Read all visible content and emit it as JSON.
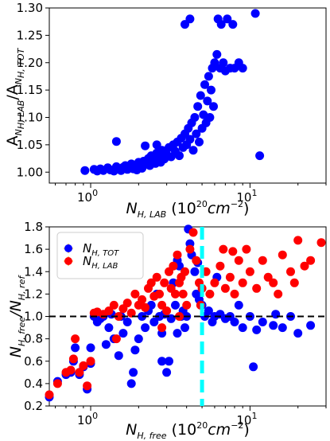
{
  "chart_data": [
    {
      "type": "scatter",
      "xscale": "log",
      "xlim": [
        0.55,
        30
      ],
      "ylim": [
        0.98,
        1.3
      ],
      "xticks": [
        {
          "v": 1,
          "label": "10",
          "exp": "0"
        },
        {
          "v": 10,
          "label": "10",
          "exp": "1"
        }
      ],
      "yticks": [
        {
          "v": 1.0,
          "label": "1.00"
        },
        {
          "v": 1.05,
          "label": "1.05"
        },
        {
          "v": 1.1,
          "label": "1.10"
        },
        {
          "v": 1.15,
          "label": "1.15"
        },
        {
          "v": 1.2,
          "label": "1.20"
        },
        {
          "v": 1.25,
          "label": "1.25"
        },
        {
          "v": 1.3,
          "label": "1.30"
        }
      ],
      "xlabel": {
        "main": "N",
        "sub": "H, LAB",
        "rest": " (10",
        "sup": "20",
        "unit": "cm",
        "unitsup": "−2",
        "close": ")"
      },
      "ylabel": {
        "a1": "A",
        "s1": "N",
        "ss1": "H, LAB",
        "slash": "/A",
        "s2": "N",
        "ss2": "H, TOT"
      },
      "series": [
        {
          "color": "#0000ff",
          "points": [
            [
              0.92,
              1.003
            ],
            [
              1.05,
              1.005
            ],
            [
              1.1,
              1.002
            ],
            [
              1.15,
              1.006
            ],
            [
              1.2,
              1.003
            ],
            [
              1.28,
              1.008
            ],
            [
              1.33,
              1.004
            ],
            [
              1.4,
              1.002
            ],
            [
              1.45,
              1.01
            ],
            [
              1.5,
              1.006
            ],
            [
              1.55,
              1.003
            ],
            [
              1.6,
              1.009
            ],
            [
              1.65,
              1.012
            ],
            [
              1.7,
              1.005
            ],
            [
              1.75,
              1.008
            ],
            [
              1.8,
              1.015
            ],
            [
              1.85,
              1.006
            ],
            [
              1.9,
              1.011
            ],
            [
              1.95,
              1.004
            ],
            [
              2.0,
              1.018
            ],
            [
              2.05,
              1.01
            ],
            [
              2.1,
              1.007
            ],
            [
              2.15,
              1.02
            ],
            [
              2.2,
              1.014
            ],
            [
              2.3,
              1.025
            ],
            [
              2.35,
              1.012
            ],
            [
              2.4,
              1.03
            ],
            [
              2.5,
              1.02
            ],
            [
              2.55,
              1.016
            ],
            [
              2.6,
              1.035
            ],
            [
              2.7,
              1.028
            ],
            [
              2.75,
              1.018
            ],
            [
              2.8,
              1.04
            ],
            [
              2.9,
              1.024
            ],
            [
              3.0,
              1.032
            ],
            [
              3.1,
              1.045
            ],
            [
              3.2,
              1.028
            ],
            [
              3.3,
              1.05
            ],
            [
              3.4,
              1.038
            ],
            [
              3.5,
              1.055
            ],
            [
              3.6,
              1.03
            ],
            [
              3.7,
              1.062
            ],
            [
              3.8,
              1.045
            ],
            [
              3.9,
              1.07
            ],
            [
              4.0,
              1.05
            ],
            [
              4.1,
              1.08
            ],
            [
              4.2,
              1.06
            ],
            [
              4.3,
              1.09
            ],
            [
              4.4,
              1.04
            ],
            [
              4.5,
              1.1
            ],
            [
              4.6,
              1.07
            ],
            [
              4.7,
              1.12
            ],
            [
              4.8,
              1.055
            ],
            [
              4.9,
              1.14
            ],
            [
              5.0,
              1.08
            ],
            [
              5.1,
              1.105
            ],
            [
              5.2,
              1.16
            ],
            [
              5.3,
              1.09
            ],
            [
              5.4,
              1.13
            ],
            [
              5.5,
              1.175
            ],
            [
              5.6,
              1.1
            ],
            [
              5.7,
              1.15
            ],
            [
              5.8,
              1.19
            ],
            [
              5.9,
              1.12
            ],
            [
              6.0,
              1.2
            ],
            [
              6.2,
              1.215
            ],
            [
              6.5,
              1.19
            ],
            [
              6.8,
              1.2
            ],
            [
              7.0,
              1.185
            ],
            [
              7.5,
              1.19
            ],
            [
              8.0,
              1.19
            ],
            [
              8.5,
              1.2
            ],
            [
              9.0,
              1.19
            ],
            [
              6.3,
              1.28
            ],
            [
              6.6,
              1.27
            ],
            [
              7.2,
              1.28
            ],
            [
              7.8,
              1.27
            ],
            [
              4.2,
              1.28
            ],
            [
              3.9,
              1.27
            ],
            [
              10.8,
              1.29
            ],
            [
              11.5,
              1.03
            ],
            [
              1.45,
              1.056
            ],
            [
              2.6,
              1.05
            ],
            [
              2.2,
              1.048
            ]
          ]
        }
      ]
    },
    {
      "type": "scatter",
      "xscale": "log",
      "xlim": [
        0.55,
        30
      ],
      "ylim": [
        0.2,
        1.8
      ],
      "xticks": [
        {
          "v": 1,
          "label": "10",
          "exp": "0"
        },
        {
          "v": 10,
          "label": "10",
          "exp": "1"
        }
      ],
      "yticks": [
        {
          "v": 0.2,
          "label": "0.2"
        },
        {
          "v": 0.4,
          "label": "0.4"
        },
        {
          "v": 0.6,
          "label": "0.6"
        },
        {
          "v": 0.8,
          "label": "0.8"
        },
        {
          "v": 1.0,
          "label": "1.0"
        },
        {
          "v": 1.2,
          "label": "1.2"
        },
        {
          "v": 1.4,
          "label": "1.4"
        },
        {
          "v": 1.6,
          "label": "1.6"
        },
        {
          "v": 1.8,
          "label": "1.8"
        }
      ],
      "xlabel": {
        "main": "N",
        "sub": "H, free",
        "rest": " (10",
        "sup": "20",
        "unit": "cm",
        "unitsup": "−2",
        "close": ")"
      },
      "ylabel": {
        "a1": "N",
        "s1": "H, free",
        "slash": "/N",
        "s2": "H, ref"
      },
      "hline": 1.0,
      "vline": 5.0,
      "legend": {
        "position": "top-left"
      },
      "series": [
        {
          "name_main": "N",
          "name_sub": "H, TOT",
          "color": "#0000ff",
          "points": [
            [
              0.55,
              0.28
            ],
            [
              0.62,
              0.42
            ],
            [
              0.7,
              0.48
            ],
            [
              0.75,
              0.5
            ],
            [
              0.78,
              0.6
            ],
            [
              0.8,
              0.72
            ],
            [
              0.85,
              0.48
            ],
            [
              0.9,
              0.55
            ],
            [
              0.95,
              0.35
            ],
            [
              1.0,
              0.58
            ],
            [
              1.0,
              0.72
            ],
            [
              1.05,
              1.0
            ],
            [
              1.1,
              0.95
            ],
            [
              1.2,
              1.0
            ],
            [
              1.25,
              0.75
            ],
            [
              1.3,
              0.9
            ],
            [
              1.35,
              1.02
            ],
            [
              1.4,
              0.8
            ],
            [
              1.5,
              0.65
            ],
            [
              1.55,
              1.0
            ],
            [
              1.6,
              0.85
            ],
            [
              1.7,
              0.95
            ],
            [
              1.8,
              0.4
            ],
            [
              1.85,
              0.5
            ],
            [
              1.9,
              0.7
            ],
            [
              2.0,
              0.8
            ],
            [
              2.1,
              1.0
            ],
            [
              2.2,
              0.9
            ],
            [
              2.3,
              1.05
            ],
            [
              2.4,
              1.1
            ],
            [
              2.5,
              0.95
            ],
            [
              2.6,
              1.2
            ],
            [
              2.7,
              1.0
            ],
            [
              2.8,
              0.85
            ],
            [
              2.9,
              1.02
            ],
            [
              3.0,
              0.5
            ],
            [
              3.1,
              0.6
            ],
            [
              3.2,
              0.98
            ],
            [
              3.3,
              1.3
            ],
            [
              3.4,
              1.1
            ],
            [
              3.5,
              1.5
            ],
            [
              3.6,
              1.45
            ],
            [
              3.7,
              1.0
            ],
            [
              3.8,
              1.05
            ],
            [
              3.9,
              0.9
            ],
            [
              4.0,
              1.0
            ],
            [
              4.1,
              1.78
            ],
            [
              4.2,
              1.65
            ],
            [
              4.3,
              1.55
            ],
            [
              4.5,
              1.4
            ],
            [
              4.6,
              1.2
            ],
            [
              4.8,
              1.15
            ],
            [
              5.0,
              1.1
            ],
            [
              5.2,
              1.0
            ],
            [
              5.5,
              1.05
            ],
            [
              5.8,
              0.95
            ],
            [
              6.0,
              1.0
            ],
            [
              6.5,
              1.02
            ],
            [
              7.0,
              0.98
            ],
            [
              7.5,
              1.0
            ],
            [
              8.0,
              0.95
            ],
            [
              8.5,
              1.1
            ],
            [
              9.0,
              0.9
            ],
            [
              10.0,
              1.0
            ],
            [
              11.0,
              0.88
            ],
            [
              12.0,
              0.95
            ],
            [
              14.0,
              0.92
            ],
            [
              16.0,
              0.9
            ],
            [
              18.0,
              1.0
            ],
            [
              20.0,
              0.85
            ],
            [
              24.0,
              0.92
            ],
            [
              10.5,
              0.55
            ],
            [
              14.5,
              1.02
            ],
            [
              2.8,
              0.6
            ],
            [
              3.5,
              0.85
            ],
            [
              1.15,
              0.98
            ],
            [
              6.2,
              1.35
            ],
            [
              4.7,
              1.48
            ]
          ]
        },
        {
          "name_main": "N",
          "name_sub": "H, LAB",
          "color": "#ff0000",
          "points": [
            [
              0.55,
              0.3
            ],
            [
              0.62,
              0.4
            ],
            [
              0.7,
              0.5
            ],
            [
              0.75,
              0.52
            ],
            [
              0.78,
              0.62
            ],
            [
              0.8,
              0.8
            ],
            [
              0.85,
              0.5
            ],
            [
              0.9,
              0.56
            ],
            [
              0.95,
              0.38
            ],
            [
              1.0,
              0.6
            ],
            [
              1.05,
              1.03
            ],
            [
              1.1,
              1.04
            ],
            [
              1.2,
              1.02
            ],
            [
              1.3,
              1.05
            ],
            [
              1.4,
              1.1
            ],
            [
              1.5,
              1.0
            ],
            [
              1.6,
              1.07
            ],
            [
              1.7,
              1.12
            ],
            [
              1.8,
              1.03
            ],
            [
              1.9,
              1.2
            ],
            [
              2.0,
              1.1
            ],
            [
              2.1,
              1.15
            ],
            [
              2.2,
              1.08
            ],
            [
              2.3,
              1.25
            ],
            [
              2.4,
              1.3
            ],
            [
              2.5,
              1.18
            ],
            [
              2.6,
              1.35
            ],
            [
              2.7,
              1.2
            ],
            [
              2.8,
              1.1
            ],
            [
              2.9,
              1.3
            ],
            [
              3.0,
              1.05
            ],
            [
              3.1,
              1.4
            ],
            [
              3.2,
              1.25
            ],
            [
              3.3,
              1.45
            ],
            [
              3.4,
              1.2
            ],
            [
              3.5,
              1.55
            ],
            [
              3.6,
              1.3
            ],
            [
              3.7,
              1.35
            ],
            [
              3.8,
              1.2
            ],
            [
              3.9,
              1.4
            ],
            [
              4.0,
              1.1
            ],
            [
              4.2,
              1.6
            ],
            [
              4.4,
              1.75
            ],
            [
              4.6,
              1.5
            ],
            [
              4.8,
              1.3
            ],
            [
              5.0,
              1.25
            ],
            [
              5.3,
              1.4
            ],
            [
              5.6,
              1.2
            ],
            [
              6.0,
              1.3
            ],
            [
              6.5,
              1.45
            ],
            [
              7.0,
              1.25
            ],
            [
              7.5,
              1.35
            ],
            [
              8.0,
              1.2
            ],
            [
              8.5,
              1.5
            ],
            [
              9.0,
              1.3
            ],
            [
              10.0,
              1.4
            ],
            [
              11.0,
              1.25
            ],
            [
              12.0,
              1.5
            ],
            [
              13.0,
              1.35
            ],
            [
              14.0,
              1.3
            ],
            [
              16.0,
              1.55
            ],
            [
              18.0,
              1.4
            ],
            [
              20.0,
              1.68
            ],
            [
              22.0,
              1.45
            ],
            [
              24.0,
              1.5
            ],
            [
              28.0,
              1.66
            ],
            [
              9.5,
              1.6
            ],
            [
              15.0,
              1.2
            ],
            [
              19.0,
              1.3
            ],
            [
              1.45,
              0.8
            ],
            [
              2.8,
              0.9
            ],
            [
              3.6,
              1.0
            ],
            [
              4.9,
              1.1
            ],
            [
              6.8,
              1.6
            ],
            [
              7.8,
              1.58
            ]
          ]
        }
      ]
    }
  ]
}
